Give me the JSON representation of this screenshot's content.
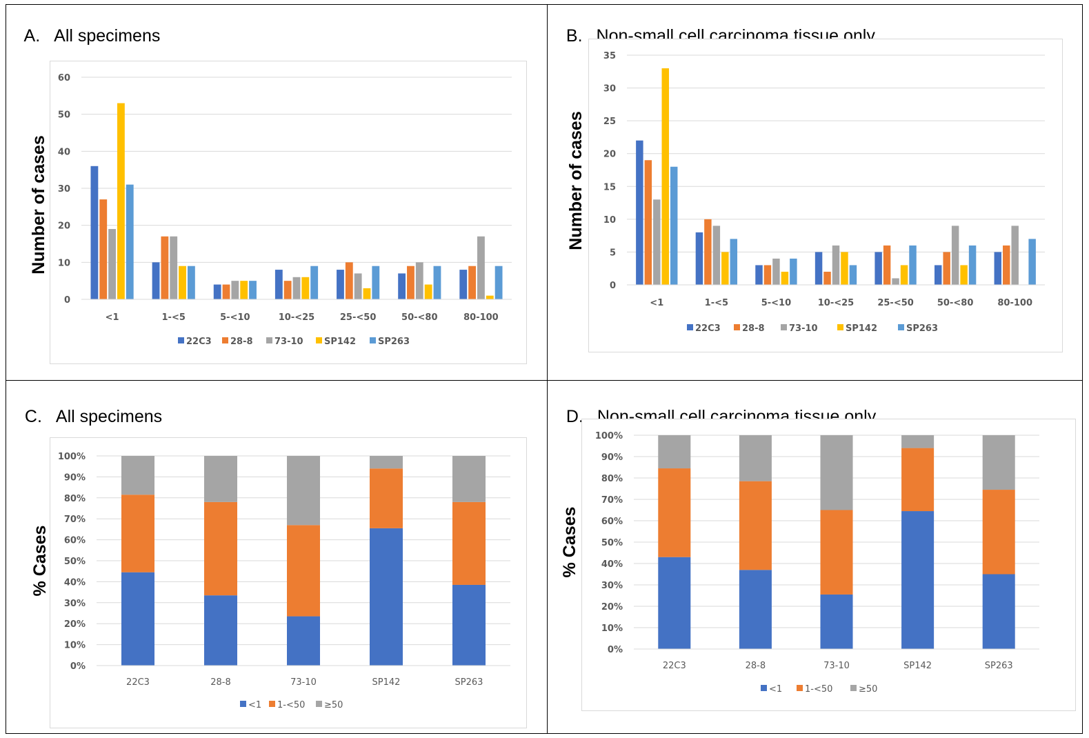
{
  "panels": {
    "A": {
      "label": "A.",
      "title": "All specimens"
    },
    "B": {
      "label": "B.",
      "title": "Non-small cell carcinoma tissue only"
    },
    "C": {
      "label": "C.",
      "title": "All specimens"
    },
    "D": {
      "label": "D.",
      "title": "Non-small cell carcinoma tissue only"
    }
  },
  "colors": {
    "22C3": "#4472C4",
    "28-8": "#ED7D31",
    "73-10": "#A5A5A5",
    "SP142": "#FFC000",
    "SP263": "#5B9BD5",
    "<1": "#4472C4",
    "1-<50": "#ED7D31",
    "≥50": "#A5A5A5"
  },
  "chart_data": [
    {
      "panel": "A",
      "type": "bar",
      "ylabel": "Number of cases",
      "xlabel": "",
      "categories": [
        "<1",
        "1-<5",
        "5-<10",
        "10-<25",
        "25-<50",
        "50-<80",
        "80-100"
      ],
      "ylim": [
        0,
        60
      ],
      "yticks": [
        "0",
        "10",
        "20",
        "30",
        "40",
        "50",
        "60"
      ],
      "series": [
        {
          "name": "22C3",
          "values": [
            36,
            10,
            4,
            8,
            8,
            7,
            8
          ]
        },
        {
          "name": "28-8",
          "values": [
            27,
            17,
            4,
            5,
            10,
            9,
            9
          ]
        },
        {
          "name": "73-10",
          "values": [
            19,
            17,
            5,
            6,
            7,
            10,
            17
          ]
        },
        {
          "name": "SP142",
          "values": [
            53,
            9,
            5,
            6,
            3,
            4,
            1
          ]
        },
        {
          "name": "SP263",
          "values": [
            31,
            9,
            5,
            9,
            9,
            9,
            9
          ]
        }
      ],
      "grid": true,
      "legend": "bottom"
    },
    {
      "panel": "B",
      "type": "bar",
      "ylabel": "Number of cases",
      "xlabel": "",
      "categories": [
        "<1",
        "1-<5",
        "5-<10",
        "10-<25",
        "25-<50",
        "50-<80",
        "80-100"
      ],
      "ylim": [
        0,
        35
      ],
      "yticks": [
        "0",
        "5",
        "10",
        "15",
        "20",
        "25",
        "30",
        "35"
      ],
      "series": [
        {
          "name": "22C3",
          "values": [
            22,
            8,
            3,
            5,
            5,
            3,
            5
          ]
        },
        {
          "name": "28-8",
          "values": [
            19,
            10,
            3,
            2,
            6,
            5,
            6
          ]
        },
        {
          "name": "73-10",
          "values": [
            13,
            9,
            4,
            6,
            1,
            9,
            9
          ]
        },
        {
          "name": "SP142",
          "values": [
            33,
            5,
            2,
            5,
            3,
            3,
            0
          ]
        },
        {
          "name": "SP263",
          "values": [
            18,
            7,
            4,
            3,
            6,
            6,
            7
          ]
        }
      ],
      "grid": true,
      "legend": "bottom"
    },
    {
      "panel": "C",
      "type": "bar",
      "stacked": true,
      "ylabel": "% Cases",
      "xlabel": "",
      "categories": [
        "22C3",
        "28-8",
        "73-10",
        "SP142",
        "SP263"
      ],
      "ylim": [
        0,
        100
      ],
      "yticks": [
        "0%",
        "10%",
        "20%",
        "30%",
        "40%",
        "50%",
        "60%",
        "70%",
        "80%",
        "90%",
        "100%"
      ],
      "series": [
        {
          "name": "<1",
          "values": [
            44.5,
            33.5,
            23.5,
            65.5,
            38.5
          ]
        },
        {
          "name": "1-<50",
          "values": [
            37.0,
            44.5,
            43.5,
            28.5,
            39.5
          ]
        },
        {
          "name": "≥50",
          "values": [
            18.5,
            22.0,
            33.0,
            6.0,
            22.0
          ]
        }
      ],
      "grid": true,
      "legend": "bottom"
    },
    {
      "panel": "D",
      "type": "bar",
      "stacked": true,
      "ylabel": "% Cases",
      "xlabel": "",
      "categories": [
        "22C3",
        "28-8",
        "73-10",
        "SP142",
        "SP263"
      ],
      "ylim": [
        0,
        100
      ],
      "yticks": [
        "0%",
        "10%",
        "20%",
        "30%",
        "40%",
        "50%",
        "60%",
        "70%",
        "80%",
        "90%",
        "100%"
      ],
      "series": [
        {
          "name": "<1",
          "values": [
            43.0,
            37.0,
            25.5,
            64.5,
            35.0
          ]
        },
        {
          "name": "1-<50",
          "values": [
            41.5,
            41.5,
            39.5,
            29.5,
            39.5
          ]
        },
        {
          "name": "≥50",
          "values": [
            15.5,
            21.5,
            35.0,
            6.0,
            25.5
          ]
        }
      ],
      "grid": true,
      "legend": "bottom"
    }
  ]
}
